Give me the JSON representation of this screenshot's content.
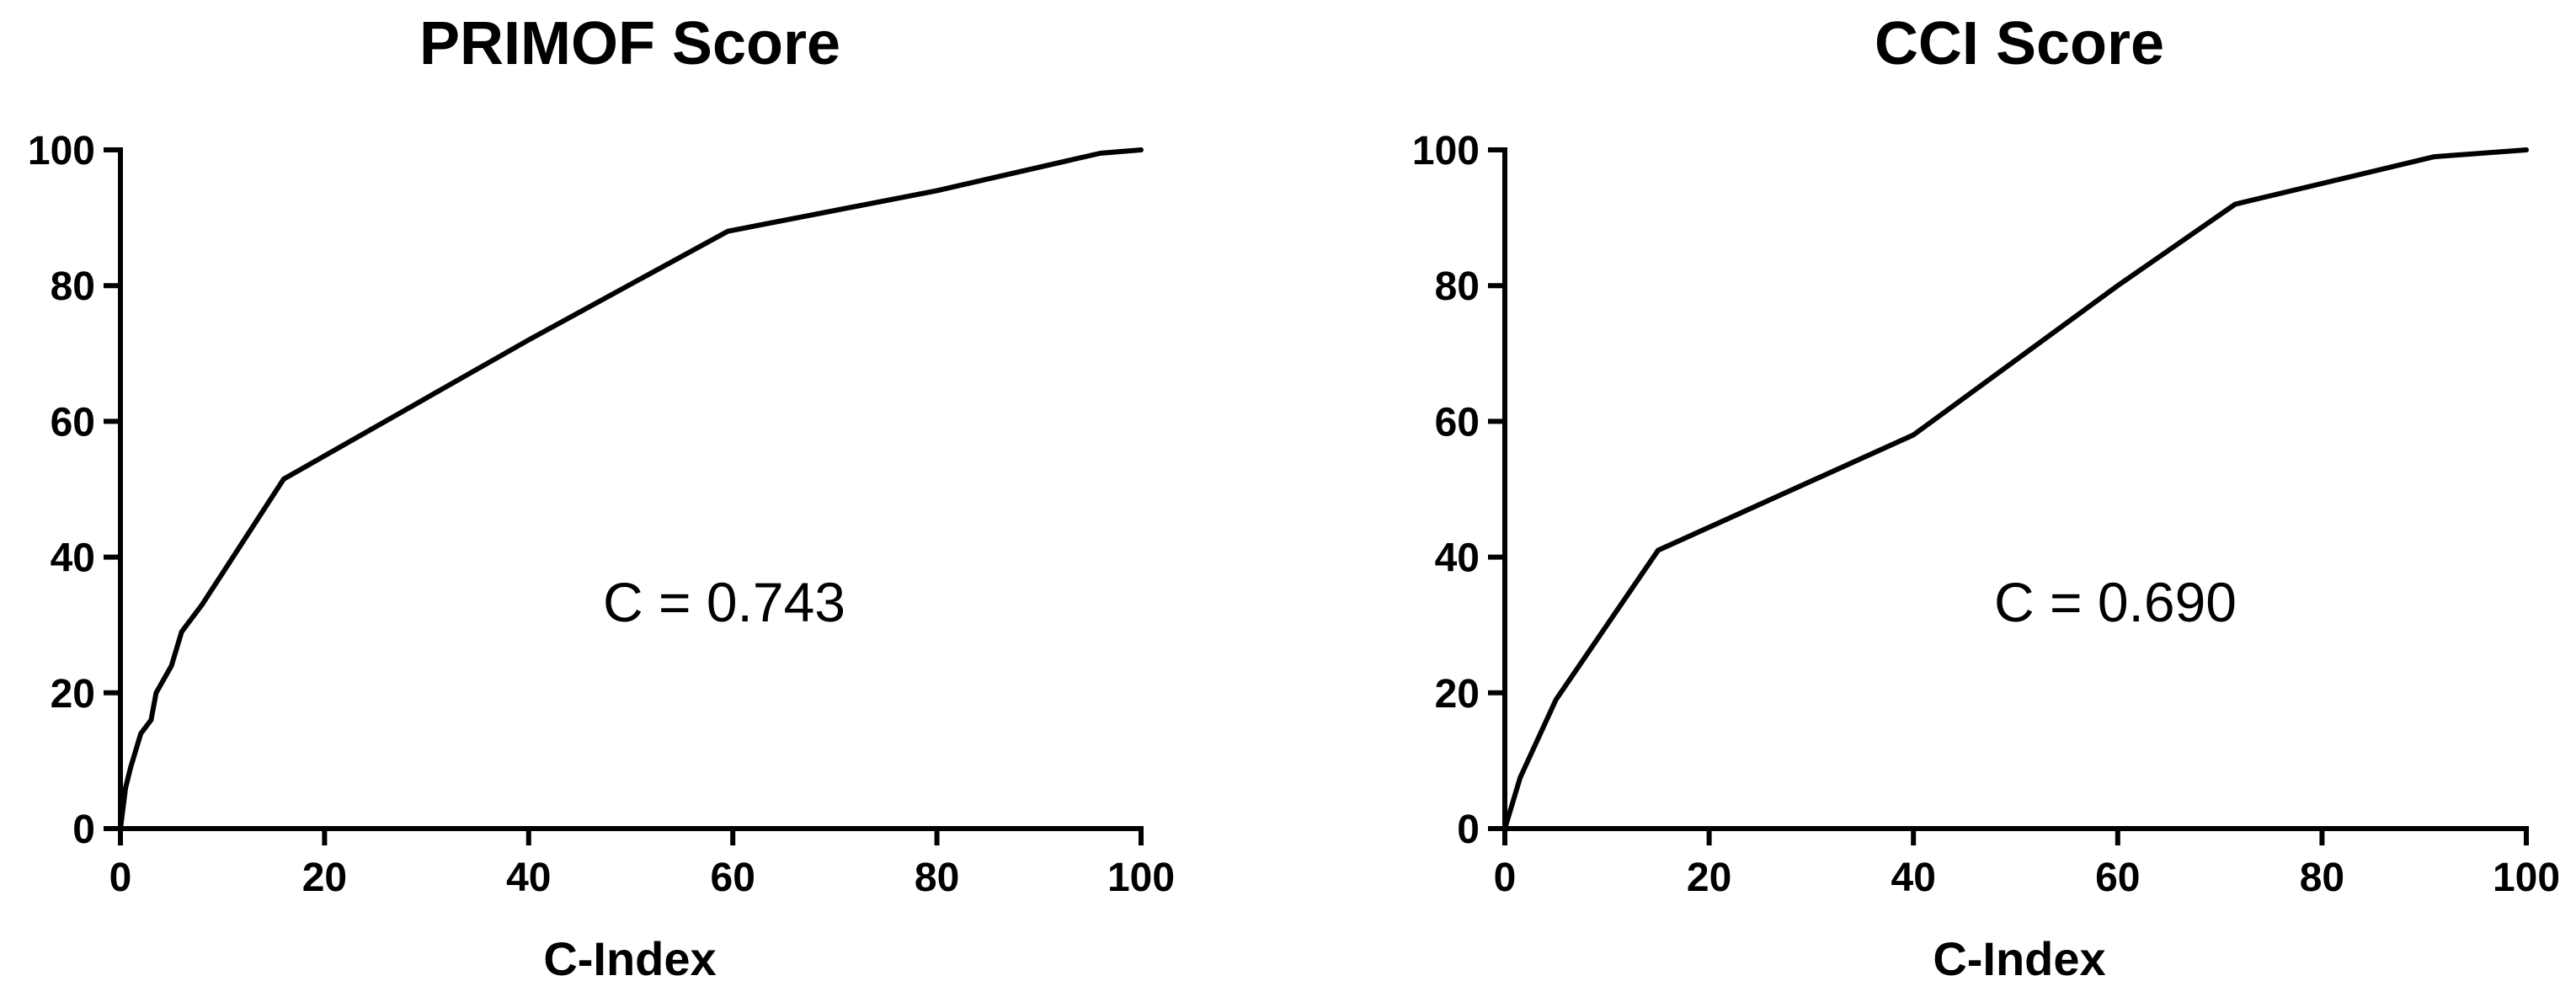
{
  "chart_data": [
    {
      "type": "line",
      "title": "PRIMOF Score",
      "xlabel": "C-Index",
      "ylabel": "",
      "xlim": [
        0,
        100
      ],
      "ylim": [
        0,
        100
      ],
      "xticks": [
        "0",
        "20",
        "40",
        "60",
        "80",
        "100"
      ],
      "yticks": [
        "0",
        "20",
        "40",
        "60",
        "80",
        "100"
      ],
      "annotation": "C = 0.743",
      "grid": false,
      "series": [
        {
          "x": [
            0,
            0.5,
            1,
            2,
            3,
            3.5,
            5,
            6,
            8,
            16,
            40,
            59.5,
            80,
            96,
            100
          ],
          "y": [
            0,
            6,
            9,
            14,
            16,
            20,
            24,
            29,
            33,
            51.5,
            72,
            88,
            94,
            99.5,
            100
          ]
        }
      ]
    },
    {
      "type": "line",
      "title": "CCI Score",
      "xlabel": "C-Index",
      "ylabel": "",
      "xlim": [
        0,
        100
      ],
      "ylim": [
        0,
        100
      ],
      "xticks": [
        "0",
        "20",
        "40",
        "60",
        "80",
        "100"
      ],
      "yticks": [
        "0",
        "20",
        "40",
        "60",
        "80",
        "100"
      ],
      "annotation": "C = 0.690",
      "grid": false,
      "series": [
        {
          "x": [
            0,
            1.5,
            5,
            15,
            40,
            60,
            71.5,
            91,
            100
          ],
          "y": [
            0,
            7.5,
            19,
            41,
            58,
            80,
            92,
            99,
            100
          ]
        }
      ]
    }
  ]
}
